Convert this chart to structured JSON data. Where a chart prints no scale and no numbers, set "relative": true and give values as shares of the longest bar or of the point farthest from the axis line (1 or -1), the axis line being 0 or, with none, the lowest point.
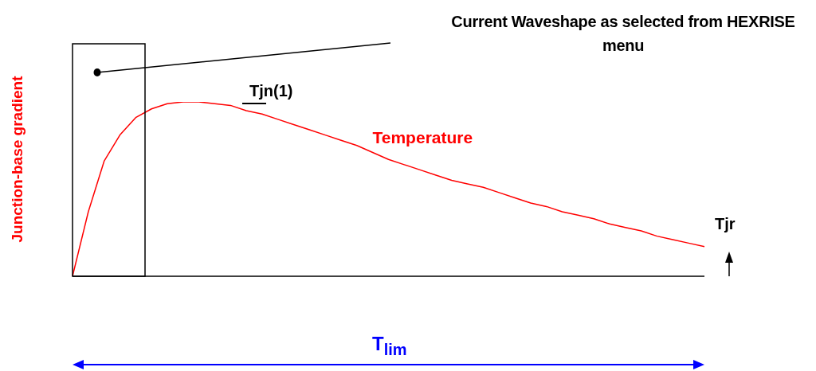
{
  "chart_data": {
    "type": "line",
    "title": "Current Waveshape as selected from HEXRISE menu",
    "ylabel": "Junction-base gradient",
    "relative": true,
    "legend": false,
    "marker": "none",
    "line_style": "solid",
    "categories": [
      null,
      null,
      null,
      null,
      null,
      null,
      null,
      null,
      null,
      null,
      null,
      null,
      null,
      null,
      null,
      null,
      null,
      null,
      null,
      null,
      null,
      null,
      null,
      null,
      null,
      null,
      null,
      null,
      null,
      null,
      null,
      null,
      null,
      null,
      null,
      null,
      null,
      null,
      null,
      null,
      null
    ],
    "series": [
      {
        "name": "Temperature",
        "color": "#ff0000",
        "values": [
          0,
          0.37,
          0.66,
          0.81,
          0.91,
          0.96,
          0.99,
          1,
          1,
          0.99,
          0.98,
          0.95,
          0.93,
          0.9,
          0.87,
          0.84,
          0.81,
          0.78,
          0.75,
          0.71,
          0.67,
          0.64,
          0.61,
          0.58,
          0.55,
          0.53,
          0.51,
          0.48,
          0.45,
          0.42,
          0.4,
          0.37,
          0.35,
          0.33,
          0.3,
          0.28,
          0.26,
          0.23,
          0.21,
          0.19,
          0.17
        ]
      }
    ],
    "annotations": [
      "Tjn(1)",
      "Tjr",
      "T$_{lim}$"
    ]
  }
}
